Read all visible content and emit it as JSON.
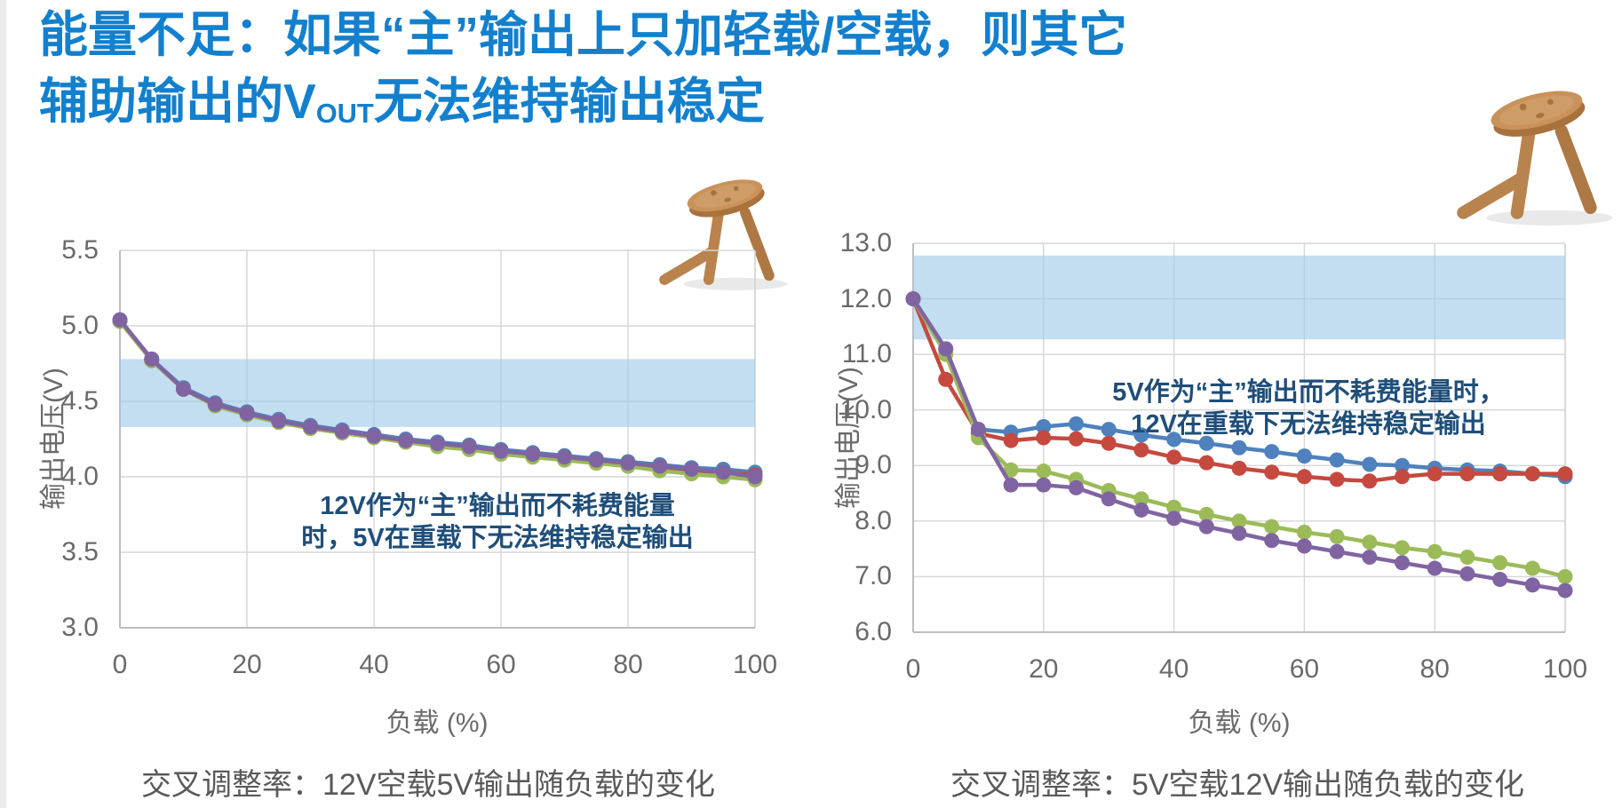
{
  "slide": {
    "title_line1": "能量不足：如果“主”输出上只加轻载/空载，则其它",
    "title_line2_pre": "辅助输出的V",
    "title_line2_sub": "OUT",
    "title_line2_post": "无法维持输出稳定"
  },
  "colors": {
    "title_blue": "#1380CD",
    "annotation_navy": "#1F4E79",
    "tick_gray": "#6A6A6A",
    "caption_gray": "#595959",
    "gridline": "#D6D6D6",
    "band_blue": "#9EC9E8",
    "stool_wood": "#C9925B"
  },
  "chart_data": [
    {
      "type": "line",
      "caption": "交叉调整率：12V空载5V输出随负载的变化",
      "xlabel": "负载 (%)",
      "ylabel": "输出电压(V)",
      "xlim": [
        0,
        100
      ],
      "ylim": [
        3.0,
        5.5
      ],
      "xticks": [
        "0",
        "20",
        "40",
        "60",
        "80",
        "100"
      ],
      "yticks": [
        "5.5",
        "5.0",
        "4.5",
        "4.0",
        "3.5",
        "3.0"
      ],
      "grid": true,
      "legend": "none",
      "band": {
        "low": 4.33,
        "high": 4.78,
        "color": "#9EC9E8"
      },
      "annotation": {
        "line1": "12V作为“主”输出而不耗费能量",
        "line2": "时，5V在重载下无法维持稳定输出"
      },
      "x": [
        0,
        5,
        10,
        15,
        20,
        25,
        30,
        35,
        40,
        45,
        50,
        55,
        60,
        65,
        70,
        75,
        80,
        85,
        90,
        95,
        100
      ],
      "series": [
        {
          "name": "blue",
          "color": "#4E81BD",
          "values": [
            5.04,
            4.78,
            4.59,
            4.49,
            4.43,
            4.38,
            4.34,
            4.31,
            4.28,
            4.25,
            4.23,
            4.21,
            4.18,
            4.16,
            4.14,
            4.12,
            4.1,
            4.08,
            4.06,
            4.05,
            4.03
          ]
        },
        {
          "name": "red",
          "color": "#C5493F",
          "values": [
            5.03,
            4.77,
            4.58,
            4.48,
            4.42,
            4.37,
            4.33,
            4.3,
            4.26,
            4.23,
            4.21,
            4.19,
            4.16,
            4.14,
            4.12,
            4.1,
            4.08,
            4.06,
            4.04,
            4.03,
            4.01
          ]
        },
        {
          "name": "green",
          "color": "#9BBB59",
          "values": [
            5.03,
            4.77,
            4.58,
            4.47,
            4.41,
            4.36,
            4.32,
            4.29,
            4.26,
            4.23,
            4.2,
            4.18,
            4.15,
            4.13,
            4.11,
            4.09,
            4.07,
            4.04,
            4.02,
            4.0,
            3.98
          ]
        },
        {
          "name": "purple",
          "color": "#8064A2",
          "values": [
            5.04,
            4.78,
            4.58,
            4.48,
            4.42,
            4.37,
            4.33,
            4.3,
            4.27,
            4.24,
            4.22,
            4.2,
            4.17,
            4.15,
            4.13,
            4.11,
            4.09,
            4.07,
            4.05,
            4.03,
            4.0
          ]
        }
      ]
    },
    {
      "type": "line",
      "caption": "交叉调整率：5V空载12V输出随负载的变化",
      "xlabel": "负载 (%)",
      "ylabel": "输出电压(V)",
      "xlim": [
        0,
        100
      ],
      "ylim": [
        6.0,
        13.0
      ],
      "xticks": [
        "0",
        "20",
        "40",
        "60",
        "80",
        "100"
      ],
      "yticks": [
        "13.0",
        "12.0",
        "11.0",
        "10.0",
        "9.0",
        "8.0",
        "7.0",
        "6.0"
      ],
      "grid": true,
      "legend": "none",
      "band": {
        "low": 11.27,
        "high": 12.78,
        "color": "#9EC9E8"
      },
      "annotation": {
        "line1": "5V作为“主”输出而不耗费能量时，",
        "line2": "12V在重载下无法维持稳定输出"
      },
      "x": [
        0,
        5,
        10,
        15,
        20,
        25,
        30,
        35,
        40,
        45,
        50,
        55,
        60,
        65,
        70,
        75,
        80,
        85,
        90,
        95,
        100
      ],
      "series": [
        {
          "name": "blue",
          "color": "#4E81BD",
          "values": [
            12.0,
            11.1,
            9.65,
            9.6,
            9.7,
            9.75,
            9.65,
            9.55,
            9.47,
            9.4,
            9.32,
            9.25,
            9.17,
            9.1,
            9.02,
            9.0,
            8.95,
            8.92,
            8.9,
            8.85,
            8.8
          ]
        },
        {
          "name": "red",
          "color": "#C5493F",
          "values": [
            12.0,
            10.55,
            9.58,
            9.45,
            9.5,
            9.48,
            9.4,
            9.28,
            9.15,
            9.05,
            8.95,
            8.88,
            8.8,
            8.75,
            8.72,
            8.8,
            8.85,
            8.85,
            8.85,
            8.85,
            8.85
          ]
        },
        {
          "name": "green",
          "color": "#9BBB59",
          "values": [
            12.0,
            11.0,
            9.5,
            8.92,
            8.9,
            8.75,
            8.55,
            8.4,
            8.25,
            8.12,
            8.0,
            7.9,
            7.8,
            7.72,
            7.62,
            7.52,
            7.45,
            7.35,
            7.25,
            7.15,
            7.0
          ]
        },
        {
          "name": "purple",
          "color": "#8064A2",
          "values": [
            12.0,
            11.1,
            9.65,
            8.65,
            8.65,
            8.6,
            8.4,
            8.2,
            8.05,
            7.9,
            7.78,
            7.65,
            7.55,
            7.45,
            7.35,
            7.25,
            7.15,
            7.05,
            6.95,
            6.85,
            6.75
          ]
        }
      ]
    }
  ]
}
